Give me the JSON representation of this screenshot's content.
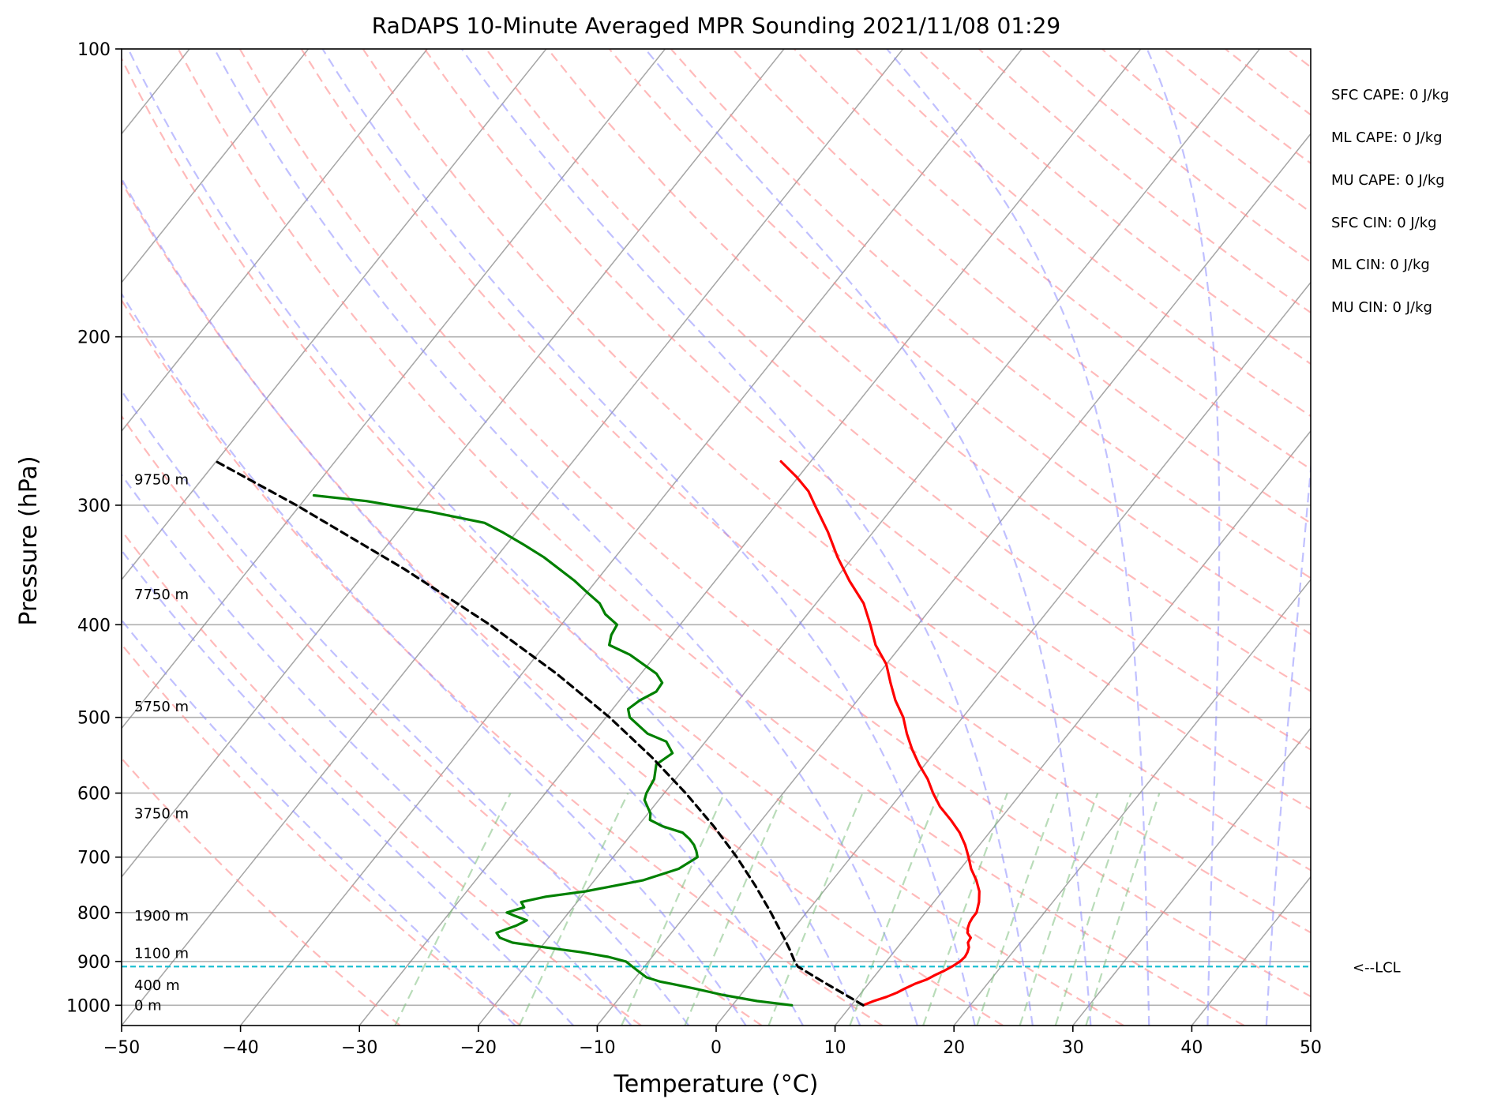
{
  "chart_data": {
    "type": "line",
    "subtype": "skew-t log-p sounding",
    "title": "RaDAPS 10-Minute Averaged MPR Sounding 2021/11/08 01:29",
    "xlabel": "Temperature (°C)",
    "ylabel": "Pressure (hPa)",
    "xlim": [
      -50,
      50
    ],
    "ylim": [
      1050,
      100
    ],
    "y_scale": "log",
    "x_ticks": [
      -50,
      -40,
      -30,
      -20,
      -10,
      0,
      10,
      20,
      30,
      40,
      50
    ],
    "x_tick_labels": [
      "−50",
      "−40",
      "−30",
      "−20",
      "−10",
      "0",
      "10",
      "20",
      "30",
      "40",
      "50"
    ],
    "y_ticks": [
      100,
      200,
      300,
      400,
      500,
      600,
      700,
      800,
      900,
      1000
    ],
    "y_tick_labels": [
      "100",
      "200",
      "300",
      "400",
      "500",
      "600",
      "700",
      "800",
      "900",
      "1000"
    ],
    "grid": true,
    "series": [
      {
        "role": "temperature",
        "color": "#ff0000",
        "p": [
          1000,
          990,
          980,
          970,
          960,
          950,
          940,
          930,
          920,
          910,
          900,
          890,
          880,
          870,
          860,
          850,
          840,
          830,
          820,
          810,
          800,
          780,
          760,
          740,
          720,
          700,
          680,
          660,
          640,
          620,
          600,
          580,
          560,
          540,
          520,
          500,
          480,
          460,
          440,
          420,
          400,
          380,
          360,
          340,
          320,
          300,
          290,
          280,
          270
        ],
        "T": [
          11,
          11.6,
          12.4,
          13.0,
          13.4,
          13.9,
          14.6,
          15.0,
          15.5,
          15.9,
          16.2,
          16.3,
          16.2,
          16.0,
          15.6,
          15.5,
          14.9,
          14.6,
          14.4,
          14.3,
          14.3,
          13.8,
          13.1,
          12.1,
          10.9,
          9.9,
          8.8,
          7.5,
          5.9,
          4.1,
          2.6,
          1.2,
          -0.5,
          -2.1,
          -3.6,
          -5.0,
          -6.8,
          -8.4,
          -10.0,
          -12.2,
          -14.0,
          -16.0,
          -18.7,
          -21.3,
          -23.8,
          -26.7,
          -28.2,
          -30.2,
          -32.5
        ]
      },
      {
        "role": "dewpoint",
        "color": "#008000",
        "p": [
          1000,
          990,
          975,
          960,
          950,
          945,
          935,
          920,
          900,
          890,
          880,
          870,
          860,
          850,
          840,
          825,
          815,
          805,
          800,
          790,
          780,
          770,
          760,
          740,
          720,
          700,
          690,
          680,
          670,
          660,
          650,
          640,
          630,
          620,
          610,
          600,
          580,
          560,
          545,
          530,
          520,
          500,
          490,
          480,
          470,
          460,
          450,
          430,
          420,
          410,
          400,
          390,
          380,
          370,
          360,
          340,
          330,
          320,
          313,
          305,
          297,
          293
        ],
        "Td": [
          5,
          1.8,
          -1.6,
          -4.4,
          -6.5,
          -7.6,
          -9.1,
          -10.3,
          -11.9,
          -13.7,
          -16.3,
          -19.6,
          -22.7,
          -24.1,
          -24.7,
          -23.5,
          -23.0,
          -24.5,
          -25.2,
          -24.1,
          -24.7,
          -23.0,
          -20.0,
          -15.9,
          -13.7,
          -12.9,
          -13.4,
          -14.0,
          -14.8,
          -15.8,
          -17.9,
          -19.4,
          -19.8,
          -20.5,
          -21.2,
          -21.5,
          -21.8,
          -22.6,
          -22.0,
          -23.3,
          -25.4,
          -28.0,
          -28.7,
          -28.3,
          -27.5,
          -27.6,
          -28.7,
          -32.2,
          -34.6,
          -35.1,
          -35.3,
          -37.0,
          -38.2,
          -40.0,
          -41.8,
          -46.0,
          -48.5,
          -51.2,
          -53.3,
          -58.5,
          -64.7,
          -69.5
        ]
      },
      {
        "role": "parcel path",
        "color": "#000000",
        "p": [
          1000,
          975,
          950,
          925,
          911,
          900,
          875,
          850,
          800,
          750,
          700,
          650,
          600,
          550,
          500,
          450,
          400,
          350,
          300,
          270
        ],
        "T": [
          11,
          8.8,
          6.5,
          4.2,
          2.9,
          2.3,
          1.1,
          -0.2,
          -3.0,
          -6.1,
          -9.6,
          -13.6,
          -18.2,
          -23.5,
          -29.7,
          -37.1,
          -46.0,
          -56.9,
          -70.3,
          -80.0
        ]
      }
    ],
    "height_labels": [
      {
        "label": "0 m",
        "p": 1000
      },
      {
        "label": "400 m",
        "p": 953
      },
      {
        "label": "1100 m",
        "p": 882
      },
      {
        "label": "1900 m",
        "p": 806
      },
      {
        "label": "3750 m",
        "p": 630
      },
      {
        "label": "5750 m",
        "p": 487
      },
      {
        "label": "7750 m",
        "p": 372
      },
      {
        "label": "9750 m",
        "p": 282
      }
    ],
    "lcl": {
      "label": "<--LCL",
      "p": 911
    },
    "background_lines": [
      "dry adiabats",
      "moist adiabats",
      "mixing ratio lines",
      "skewed isotherms"
    ],
    "colors": {
      "temperature": "#ff0000",
      "dewpoint": "#008000",
      "parcel": "#000000",
      "lcl": "#17becf",
      "dry_adiabat": "#ff8c8c",
      "moist_adiabat": "#8c8cff",
      "mixing_ratio": "#7fbf7f",
      "isotherm": "#808080"
    }
  },
  "stats": [
    "SFC CAPE: 0 J/kg",
    "ML CAPE: 0 J/kg",
    "MU CAPE: 0 J/kg",
    "SFC CIN: 0 J/kg",
    "ML CIN: 0 J/kg",
    "MU CIN: 0 J/kg"
  ]
}
